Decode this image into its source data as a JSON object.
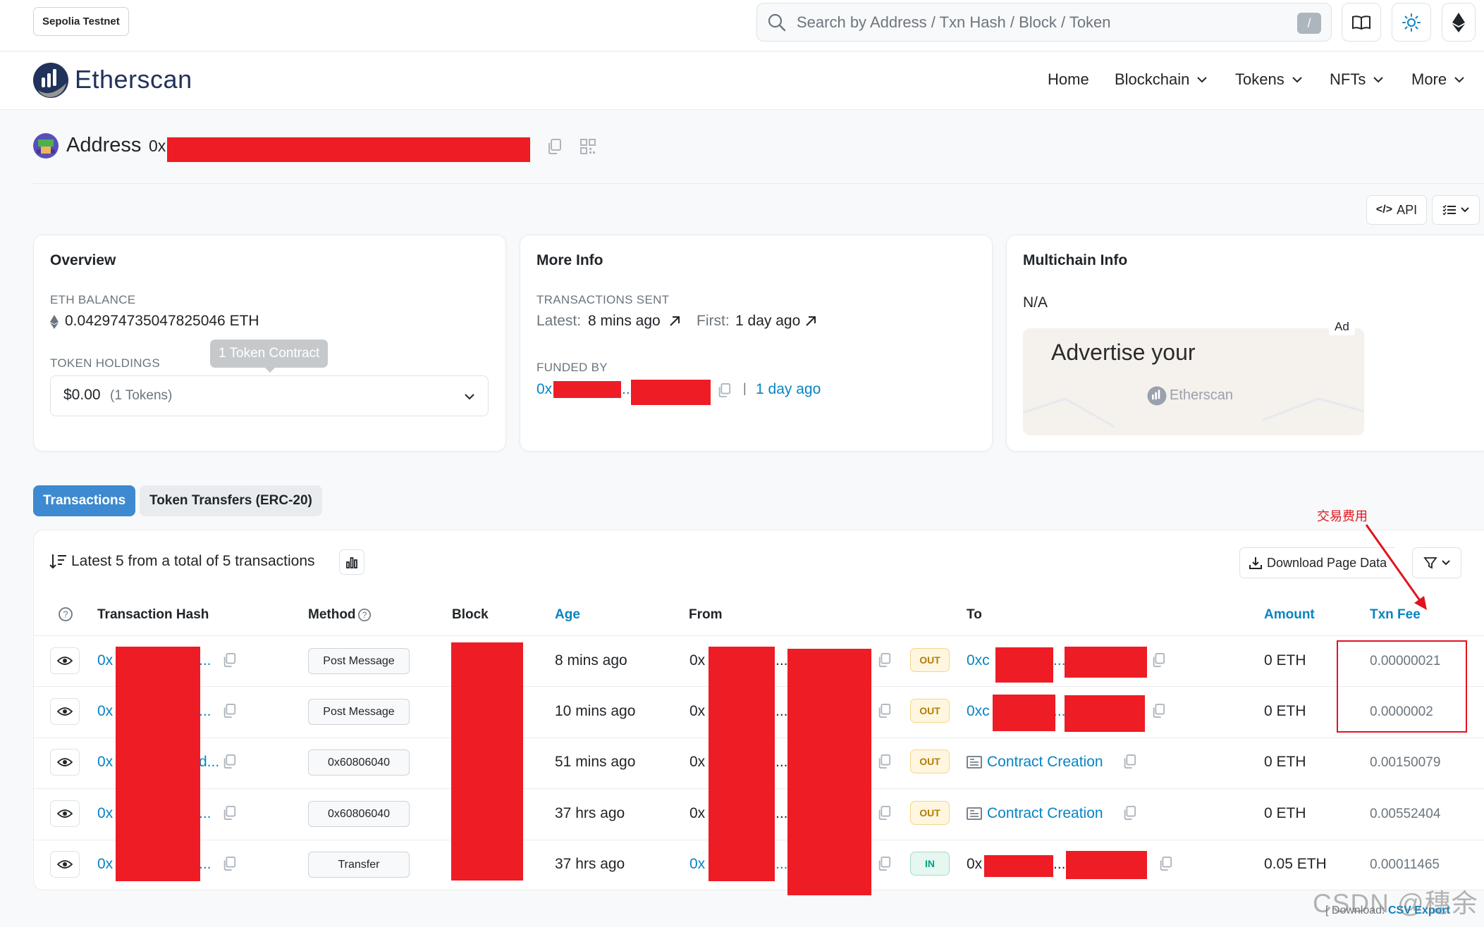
{
  "header": {
    "network": "Sepolia Testnet",
    "search_placeholder": "Search by Address / Txn Hash / Block / Token",
    "slash_key": "/"
  },
  "nav": {
    "logo": "Etherscan",
    "items": [
      "Home",
      "Blockchain",
      "Tokens",
      "NFTs",
      "More"
    ]
  },
  "address": {
    "title": "Address",
    "prefix": "0x"
  },
  "toolbar": {
    "api_label": "API"
  },
  "overview": {
    "title": "Overview",
    "eth_balance_label": "ETH BALANCE",
    "eth_balance": "0.042974735047825046 ETH",
    "token_holdings_label": "TOKEN HOLDINGS",
    "token_value": "$0.00",
    "token_count": "(1 Tokens)",
    "tooltip": "1 Token Contract"
  },
  "more_info": {
    "title": "More Info",
    "tx_sent_label": "TRANSACTIONS SENT",
    "latest_label": "Latest:",
    "latest_value": "8 mins ago",
    "first_label": "First:",
    "first_value": "1 day ago",
    "funded_by_label": "FUNDED BY",
    "funded_prefix": "0x",
    "funded_ellipsis": "...",
    "funded_sep": "|",
    "funded_time": "1 day ago"
  },
  "multichain": {
    "title": "Multichain Info",
    "value": "N/A",
    "ad_label": "Ad",
    "ad_headline": "Advertise your",
    "ad_brand": "Etherscan"
  },
  "tabs": [
    "Transactions",
    "Token Transfers (ERC-20)"
  ],
  "transactions": {
    "summary": "Latest 5 from a total of 5 transactions",
    "download_label": "Download Page Data",
    "columns": {
      "hash": "Transaction Hash",
      "method": "Method",
      "block": "Block",
      "age": "Age",
      "from": "From",
      "to": "To",
      "amount": "Amount",
      "fee": "Txn Fee"
    },
    "rows": [
      {
        "hash": "0x",
        "hash_tail": "...",
        "method": "Post Message",
        "age": "8 mins ago",
        "from": "0x",
        "from_tail": "...",
        "direction": "OUT",
        "to": "0xc",
        "to_tail": "...",
        "amount": "0 ETH",
        "fee": "0.00000021"
      },
      {
        "hash": "0x",
        "hash_tail": "...",
        "method": "Post Message",
        "age": "10 mins ago",
        "from": "0x",
        "from_tail": "...",
        "direction": "OUT",
        "to": "0xc",
        "to_tail": "...",
        "amount": "0 ETH",
        "fee": "0.0000002"
      },
      {
        "hash": "0x",
        "hash_tail": "d...",
        "method": "0x60806040",
        "age": "51 mins ago",
        "from": "0x",
        "from_tail": "...",
        "direction": "OUT",
        "to": "Contract Creation",
        "to_tail": "",
        "amount": "0 ETH",
        "fee": "0.00150079"
      },
      {
        "hash": "0x",
        "hash_tail": "...",
        "method": "0x60806040",
        "age": "37 hrs ago",
        "from": "0x",
        "from_tail": "...",
        "direction": "OUT",
        "to": "Contract Creation",
        "to_tail": "",
        "amount": "0 ETH",
        "fee": "0.00552404"
      },
      {
        "hash": "0x",
        "hash_tail": "...",
        "method": "Transfer",
        "age": "37 hrs ago",
        "from": "0x",
        "from_tail": "...",
        "direction": "IN",
        "to": "0x",
        "to_tail": "...",
        "amount": "0.05 ETH",
        "fee": "0.00011465"
      }
    ],
    "footer_prefix": "[ Download:",
    "footer_link": "CSV Export"
  },
  "annotation": {
    "label": "交易费用",
    "color": "#e0141e"
  },
  "watermark": "CSDN @穗余",
  "colors": {
    "link": "#0784c3",
    "active_tab": "#3d8ad0",
    "redaction": "#ee1c25"
  }
}
